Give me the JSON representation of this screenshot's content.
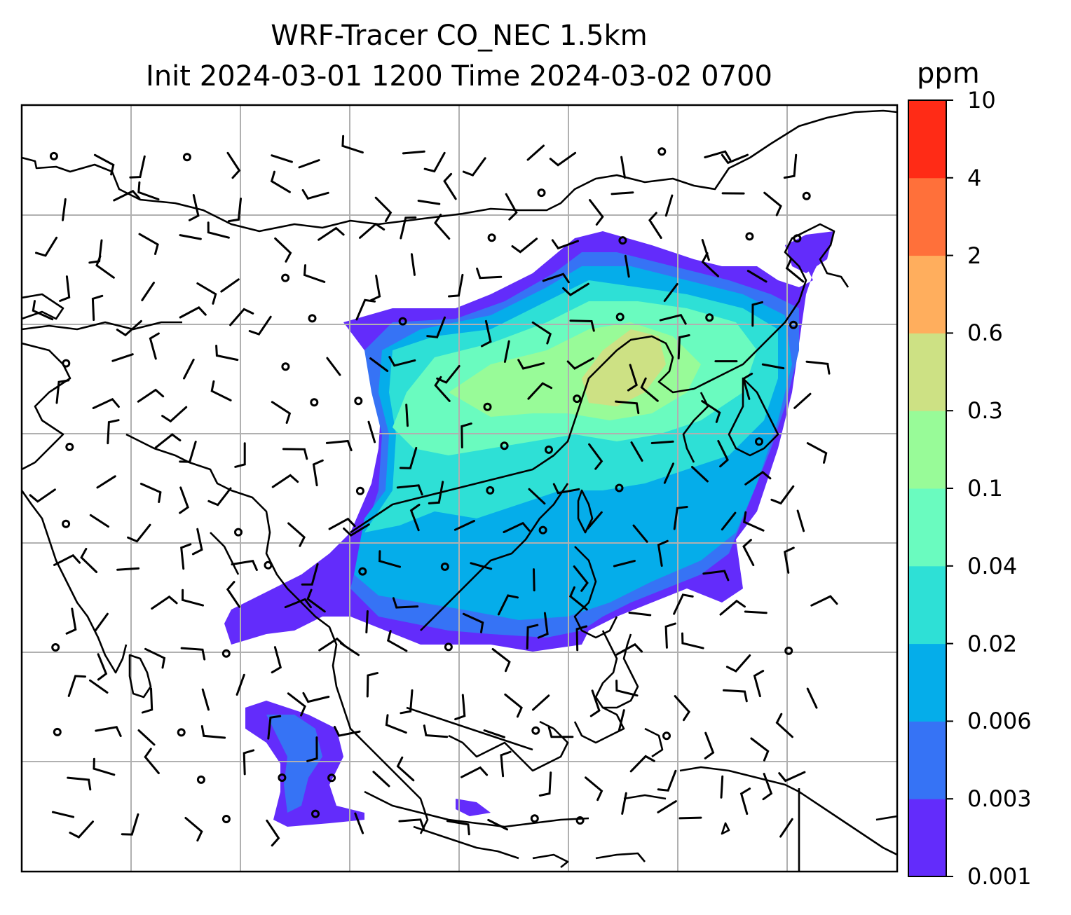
{
  "title": {
    "line1": "WRF-Tracer CO_NEC 1.5km",
    "line2": "Init 2024-03-01 1200 Time 2024-03-02 0700"
  },
  "colorbar": {
    "unit": "ppm",
    "levels": [
      "0.001",
      "0.003",
      "0.006",
      "0.02",
      "0.04",
      "0.1",
      "0.3",
      "0.6",
      "2",
      "4",
      "10"
    ],
    "colors": [
      "#632cfb",
      "#3673f5",
      "#05adea",
      "#2ee0d6",
      "#6afbbf",
      "#98fb98",
      "#cde184",
      "#ffae5d",
      "#ff703a",
      "#ff2b16"
    ]
  },
  "map": {
    "gridlines": true,
    "plume_fill_levels": [
      "0.003",
      "0.006",
      "0.02",
      "0.04",
      "0.1",
      "0.3",
      "0.6"
    ],
    "layers": [
      "coastlines",
      "country-borders",
      "wind-barbs",
      "calm-wind-circles"
    ]
  }
}
